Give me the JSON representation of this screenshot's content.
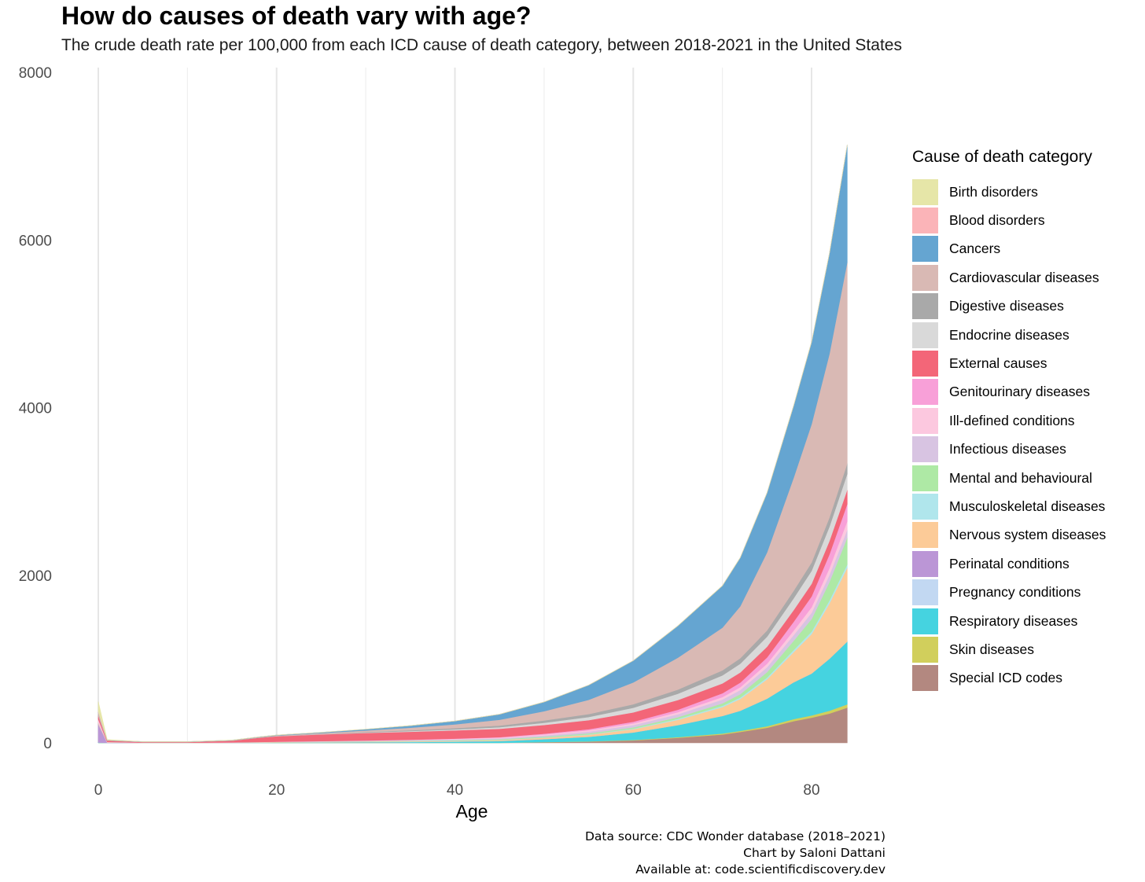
{
  "header": {
    "title": "How do causes of death vary with age?",
    "subtitle": "The crude death rate per 100,000 from each ICD cause of death category, between 2018-2021 in the United States"
  },
  "caption": {
    "line1": "Data source: CDC Wonder database (2018–2021)",
    "line2": "Chart by Saloni Dattani",
    "line3": "Available at: code.scientificdiscovery.dev"
  },
  "chart_data": {
    "type": "area",
    "stacked": true,
    "title": "How do causes of death vary with age?",
    "subtitle": "The crude death rate per 100,000 from each ICD cause of death category, between 2018-2021 in the United States",
    "xlabel": "Age",
    "ylabel": "",
    "xlim": [
      0,
      84
    ],
    "ylim": [
      0,
      8000
    ],
    "x_ticks": [
      0,
      20,
      40,
      60,
      80
    ],
    "y_ticks": [
      0,
      2000,
      4000,
      6000,
      8000
    ],
    "grid": "vertical",
    "legend_title": "Cause of death category",
    "legend_position": "right",
    "x": [
      0,
      1,
      5,
      10,
      15,
      18,
      20,
      25,
      30,
      35,
      40,
      45,
      50,
      55,
      60,
      65,
      70,
      72,
      75,
      78,
      80,
      82,
      84
    ],
    "series": [
      {
        "name": "Special ICD codes",
        "color": "#b38880",
        "values": [
          0,
          0,
          0,
          0,
          0,
          0,
          0,
          0,
          0,
          0,
          0,
          0,
          8,
          15,
          30,
          60,
          100,
          130,
          180,
          260,
          300,
          350,
          420
        ]
      },
      {
        "name": "Skin diseases",
        "color": "#d1cf5c",
        "values": [
          0,
          0,
          0,
          0,
          0,
          0,
          0,
          0,
          0,
          0,
          0,
          0,
          2,
          3,
          5,
          8,
          12,
          14,
          18,
          24,
          28,
          34,
          40
        ]
      },
      {
        "name": "Respiratory diseases",
        "color": "#45d3e0",
        "values": [
          5,
          1,
          0.5,
          0.5,
          1,
          2,
          3,
          5,
          7,
          10,
          15,
          22,
          35,
          55,
          90,
          145,
          210,
          240,
          330,
          440,
          500,
          620,
          750
        ]
      },
      {
        "name": "Pregnancy conditions",
        "color": "#c2d8f2",
        "values": [
          0,
          0,
          0,
          0,
          0.5,
          1,
          1.5,
          2,
          2,
          2,
          1.5,
          0.5,
          0,
          0,
          0,
          0,
          0,
          0,
          0,
          0,
          0,
          0,
          0
        ]
      },
      {
        "name": "Perinatal conditions",
        "color": "#bb96d6",
        "values": [
          220,
          3,
          0,
          0,
          0,
          0,
          0,
          0,
          0,
          0,
          0,
          0,
          0,
          0,
          0,
          0,
          0,
          0,
          0,
          0,
          0,
          0,
          0
        ]
      },
      {
        "name": "Nervous system diseases",
        "color": "#fccb98",
        "values": [
          12,
          3,
          1.5,
          1.5,
          2,
          3,
          3,
          4,
          5,
          6,
          8,
          11,
          16,
          24,
          38,
          62,
          105,
          140,
          230,
          360,
          470,
          660,
          880
        ]
      },
      {
        "name": "Musculoskeletal diseases",
        "color": "#b0e6ec",
        "values": [
          0,
          0,
          0,
          0,
          0.5,
          0.5,
          1,
          1,
          1.5,
          2,
          2.5,
          3,
          4,
          6,
          8,
          11,
          15,
          17,
          21,
          26,
          30,
          35,
          40
        ]
      },
      {
        "name": "Mental and behavioural",
        "color": "#aee9a5",
        "values": [
          0,
          0,
          0,
          0,
          0.5,
          1,
          2,
          3,
          4,
          5,
          6,
          7,
          9,
          11,
          14,
          20,
          30,
          40,
          65,
          110,
          150,
          220,
          320
        ]
      },
      {
        "name": "Infectious diseases",
        "color": "#d8c4e2",
        "values": [
          8,
          2,
          0.5,
          0.5,
          0.5,
          1,
          1.5,
          2.5,
          4,
          6,
          8,
          11,
          15,
          21,
          28,
          36,
          45,
          50,
          58,
          68,
          75,
          85,
          95
        ]
      },
      {
        "name": "Ill-defined conditions",
        "color": "#fcc8df",
        "values": [
          35,
          3,
          0.5,
          0.5,
          1,
          2,
          2,
          3,
          4,
          5,
          7,
          9,
          12,
          15,
          19,
          24,
          30,
          34,
          42,
          54,
          65,
          80,
          100
        ]
      },
      {
        "name": "Genitourinary diseases",
        "color": "#f8a0d8",
        "values": [
          3,
          0.5,
          0,
          0,
          0,
          0.5,
          0.5,
          1,
          1.5,
          2,
          3,
          5,
          8,
          13,
          20,
          30,
          45,
          55,
          75,
          105,
          130,
          165,
          205
        ]
      },
      {
        "name": "External causes",
        "color": "#f36678",
        "values": [
          40,
          15,
          7,
          7,
          20,
          50,
          65,
          80,
          90,
          95,
          98,
          100,
          105,
          108,
          112,
          115,
          118,
          120,
          128,
          140,
          150,
          160,
          170
        ]
      },
      {
        "name": "Endocrine diseases",
        "color": "#d9d9d9",
        "values": [
          5,
          0.5,
          0.5,
          0.5,
          1,
          1,
          2,
          3,
          5,
          8,
          12,
          18,
          26,
          38,
          55,
          75,
          95,
          105,
          120,
          140,
          155,
          170,
          190
        ]
      },
      {
        "name": "Digestive diseases",
        "color": "#a9a9a9",
        "values": [
          8,
          1,
          0.5,
          0.5,
          0.5,
          1,
          1.5,
          3,
          6,
          10,
          15,
          20,
          28,
          35,
          42,
          50,
          60,
          65,
          75,
          90,
          100,
          110,
          125
        ]
      },
      {
        "name": "Cardiovascular diseases",
        "color": "#d9b9b4",
        "values": [
          25,
          3,
          1,
          1,
          2,
          4,
          5,
          10,
          18,
          30,
          45,
          70,
          110,
          170,
          260,
          380,
          510,
          620,
          930,
          1350,
          1650,
          1950,
          2400
        ]
      },
      {
        "name": "Cancers",
        "color": "#65a5d1",
        "values": [
          3,
          2,
          2.5,
          2.5,
          3,
          4,
          5,
          8,
          15,
          25,
          40,
          65,
          110,
          175,
          260,
          380,
          500,
          580,
          710,
          860,
          980,
          1200,
          1400
        ]
      },
      {
        "name": "Blood disorders",
        "color": "#fbb4b8",
        "values": [
          8,
          0.5,
          0,
          0,
          0,
          0,
          0,
          0,
          0,
          0,
          0,
          0,
          0,
          0,
          0,
          0,
          0,
          0,
          0,
          0,
          0,
          0,
          0
        ]
      },
      {
        "name": "Birth disorders",
        "color": "#e6e6a8",
        "values": [
          120,
          5,
          0.5,
          0.5,
          0.5,
          0.5,
          0.5,
          0.5,
          0.5,
          0.5,
          0.5,
          0.5,
          0.5,
          0.5,
          0.5,
          0.5,
          0.5,
          0.5,
          0.5,
          0.5,
          0.5,
          0.5,
          0.5
        ]
      }
    ]
  },
  "legend": {
    "title": "Cause of death category",
    "items": [
      {
        "label": "Birth disorders",
        "color": "#e6e6a8"
      },
      {
        "label": "Blood disorders",
        "color": "#fbb4b8"
      },
      {
        "label": "Cancers",
        "color": "#65a5d1"
      },
      {
        "label": "Cardiovascular diseases",
        "color": "#d9b9b4"
      },
      {
        "label": "Digestive diseases",
        "color": "#a9a9a9"
      },
      {
        "label": "Endocrine diseases",
        "color": "#d9d9d9"
      },
      {
        "label": "External causes",
        "color": "#f36678"
      },
      {
        "label": "Genitourinary diseases",
        "color": "#f8a0d8"
      },
      {
        "label": "Ill-defined conditions",
        "color": "#fcc8df"
      },
      {
        "label": "Infectious diseases",
        "color": "#d8c4e2"
      },
      {
        "label": "Mental and behavioural",
        "color": "#aee9a5"
      },
      {
        "label": "Musculoskeletal diseases",
        "color": "#b0e6ec"
      },
      {
        "label": "Nervous system diseases",
        "color": "#fccb98"
      },
      {
        "label": "Perinatal conditions",
        "color": "#bb96d6"
      },
      {
        "label": "Pregnancy conditions",
        "color": "#c2d8f2"
      },
      {
        "label": "Respiratory diseases",
        "color": "#45d3e0"
      },
      {
        "label": "Skin diseases",
        "color": "#d1cf5c"
      },
      {
        "label": "Special ICD codes",
        "color": "#b38880"
      }
    ]
  }
}
